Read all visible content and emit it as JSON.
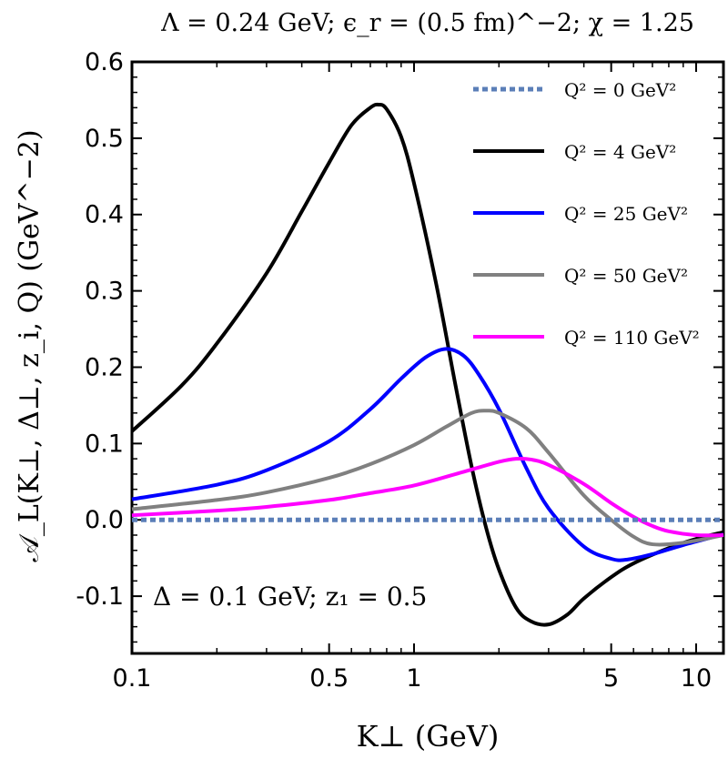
{
  "chart_data": {
    "type": "line",
    "title": "Λ = 0.24 GeV;  ϵ_r = (0.5 fm)^−2;  χ = 1.25",
    "xlabel": "K⊥ (GeV)",
    "ylabel": "𝒜_L(K⊥, Δ⊥, z_i, Q) (GeV^−2)",
    "annotation": "Δ = 0.1 GeV; z₁ = 0.5",
    "x_scale": "log",
    "xlim": [
      0.1,
      12.5
    ],
    "ylim": [
      -0.175,
      0.6
    ],
    "grid": false,
    "legend_position": "top-right",
    "x_ticks": [
      {
        "value": 0.1,
        "label": "0.1"
      },
      {
        "value": 0.5,
        "label": "0.5"
      },
      {
        "value": 1,
        "label": "1"
      },
      {
        "value": 5,
        "label": "5"
      },
      {
        "value": 10,
        "label": "10"
      }
    ],
    "y_ticks": [
      {
        "value": 0.6,
        "label": "0.6"
      },
      {
        "value": 0.5,
        "label": "0.5"
      },
      {
        "value": 0.4,
        "label": "0.4"
      },
      {
        "value": 0.3,
        "label": "0.3"
      },
      {
        "value": 0.2,
        "label": "0.2"
      },
      {
        "value": 0.1,
        "label": "0.1"
      },
      {
        "value": 0.0,
        "label": "0.0"
      },
      {
        "value": -0.1,
        "label": "-0.1"
      }
    ],
    "series": [
      {
        "name": "Q² = 0 GeV²",
        "color": "#5b7fb8",
        "dashed": true,
        "x": [
          0.1,
          12.5
        ],
        "y": [
          0.0,
          0.0
        ]
      },
      {
        "name": "Q² = 4 GeV²",
        "color": "#000000",
        "dashed": false,
        "x": [
          0.1,
          0.15,
          0.2,
          0.3,
          0.4,
          0.5,
          0.6,
          0.7,
          0.75,
          0.8,
          0.9,
          1.0,
          1.2,
          1.4,
          1.6,
          1.8,
          2.0,
          2.3,
          2.6,
          3.0,
          3.5,
          4.0,
          5.0,
          6.0,
          8.0,
          10.0,
          12.5
        ],
        "y": [
          0.116,
          0.176,
          0.231,
          0.323,
          0.404,
          0.468,
          0.517,
          0.54,
          0.544,
          0.538,
          0.502,
          0.441,
          0.308,
          0.178,
          0.07,
          -0.01,
          -0.065,
          -0.115,
          -0.133,
          -0.137,
          -0.124,
          -0.103,
          -0.075,
          -0.057,
          -0.037,
          -0.025,
          -0.016
        ]
      },
      {
        "name": "Q² = 25 GeV²",
        "color": "#0000ff",
        "dashed": false,
        "x": [
          0.1,
          0.2,
          0.3,
          0.5,
          0.7,
          0.9,
          1.1,
          1.3,
          1.5,
          1.7,
          2.0,
          2.5,
          3.0,
          4.0,
          5.0,
          5.7,
          7.0,
          9.0,
          12.5
        ],
        "y": [
          0.027,
          0.046,
          0.065,
          0.103,
          0.145,
          0.185,
          0.213,
          0.224,
          0.215,
          0.19,
          0.145,
          0.068,
          0.015,
          -0.035,
          -0.051,
          -0.052,
          -0.045,
          -0.033,
          -0.019
        ]
      },
      {
        "name": "Q² = 50 GeV²",
        "color": "#808080",
        "dashed": false,
        "x": [
          0.1,
          0.2,
          0.3,
          0.5,
          0.7,
          1.0,
          1.3,
          1.6,
          1.8,
          2.0,
          2.5,
          3.0,
          4.0,
          5.0,
          6.0,
          7.0,
          9.0,
          12.5
        ],
        "y": [
          0.014,
          0.026,
          0.036,
          0.055,
          0.073,
          0.098,
          0.122,
          0.14,
          0.143,
          0.14,
          0.12,
          0.088,
          0.032,
          0.0,
          -0.022,
          -0.032,
          -0.03,
          -0.02
        ]
      },
      {
        "name": "Q² = 110 GeV²",
        "color": "#ff00ff",
        "dashed": false,
        "x": [
          0.1,
          0.2,
          0.3,
          0.5,
          0.7,
          1.0,
          1.5,
          2.0,
          2.3,
          2.6,
          3.0,
          4.0,
          5.0,
          6.0,
          7.0,
          8.0,
          10.0,
          12.5
        ],
        "y": [
          0.006,
          0.012,
          0.017,
          0.026,
          0.035,
          0.045,
          0.063,
          0.076,
          0.08,
          0.079,
          0.072,
          0.047,
          0.022,
          0.004,
          -0.008,
          -0.015,
          -0.02,
          -0.02
        ]
      }
    ]
  }
}
